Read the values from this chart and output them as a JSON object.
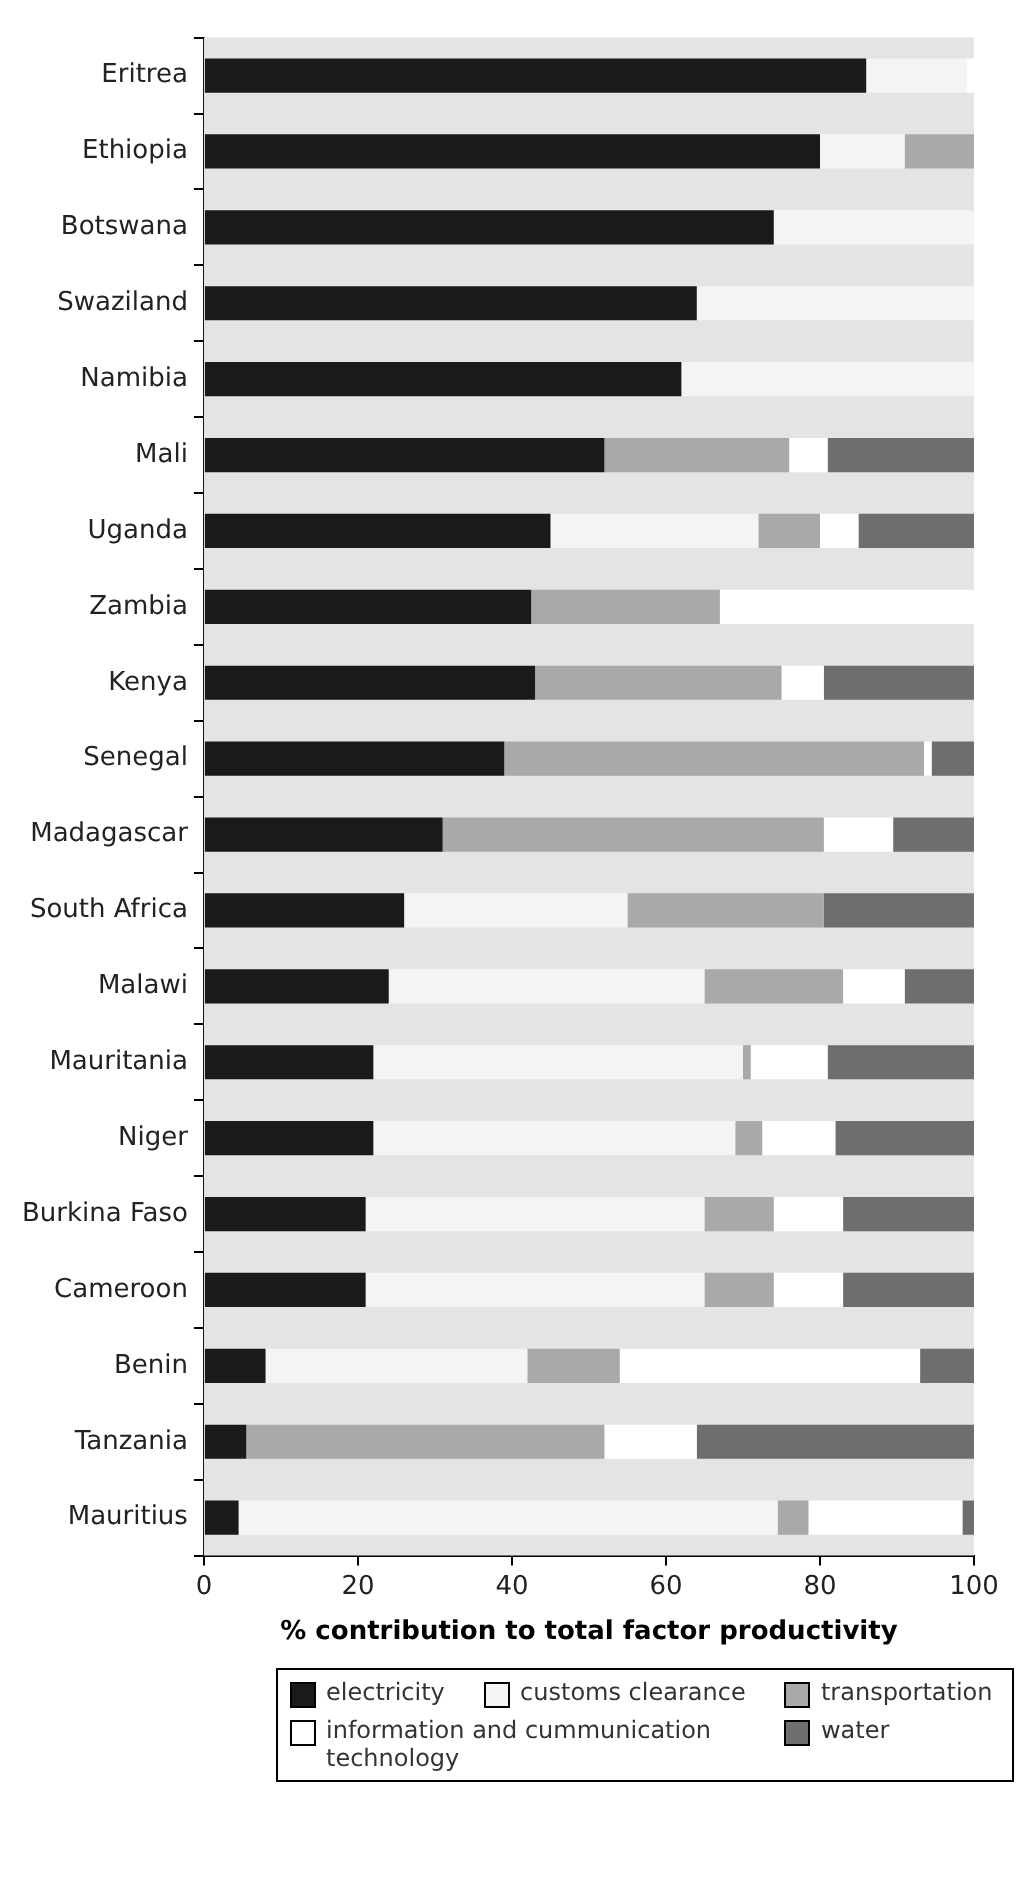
{
  "chart_data": {
    "type": "bar",
    "orientation": "horizontal",
    "stacked": true,
    "xlabel": "% contribution to total factor productivity",
    "categories": [
      "Eritrea",
      "Ethiopia",
      "Botswana",
      "Swaziland",
      "Namibia",
      "Mali",
      "Uganda",
      "Zambia",
      "Kenya",
      "Senegal",
      "Madagascar",
      "South Africa",
      "Malawi",
      "Mauritania",
      "Niger",
      "Burkina Faso",
      "Cameroon",
      "Benin",
      "Tanzania",
      "Mauritius"
    ],
    "series": [
      {
        "name": "electricity",
        "color": "#1a1a1a",
        "values": [
          86,
          80,
          74,
          64,
          62,
          52,
          45,
          42.5,
          43,
          39,
          31,
          26,
          24,
          22,
          22,
          21,
          21,
          8,
          5.5,
          4.5
        ]
      },
      {
        "name": "customs clearance",
        "color": "#f4f4f4",
        "values": [
          13,
          11,
          26,
          36,
          38,
          0,
          27,
          0,
          0,
          0,
          0,
          29,
          41,
          48,
          47,
          44,
          44,
          34,
          0,
          70
        ]
      },
      {
        "name": "transportation",
        "color": "#a9a9a9",
        "values": [
          0,
          9,
          0,
          0,
          0,
          24,
          8,
          24.5,
          32,
          54.5,
          49.5,
          25.5,
          18,
          1,
          3.5,
          9,
          9,
          12,
          46.5,
          4
        ]
      },
      {
        "name": "information and cummunication technology",
        "color": "#ffffff",
        "values": [
          1,
          0,
          0,
          0,
          0,
          5,
          5,
          33,
          5.5,
          1,
          9,
          0,
          8,
          10,
          9.5,
          9,
          9,
          39,
          12,
          20
        ]
      },
      {
        "name": "water",
        "color": "#6e6e6e",
        "values": [
          0,
          0,
          0,
          0,
          0,
          19,
          15,
          0,
          19.5,
          5.5,
          10.5,
          19.5,
          9,
          19,
          18,
          17,
          17,
          7,
          36,
          1.5
        ]
      }
    ],
    "xlim": [
      0,
      100
    ],
    "xticks": [
      0,
      20,
      40,
      60,
      80,
      100
    ],
    "grid": false,
    "legend": "bottom"
  }
}
